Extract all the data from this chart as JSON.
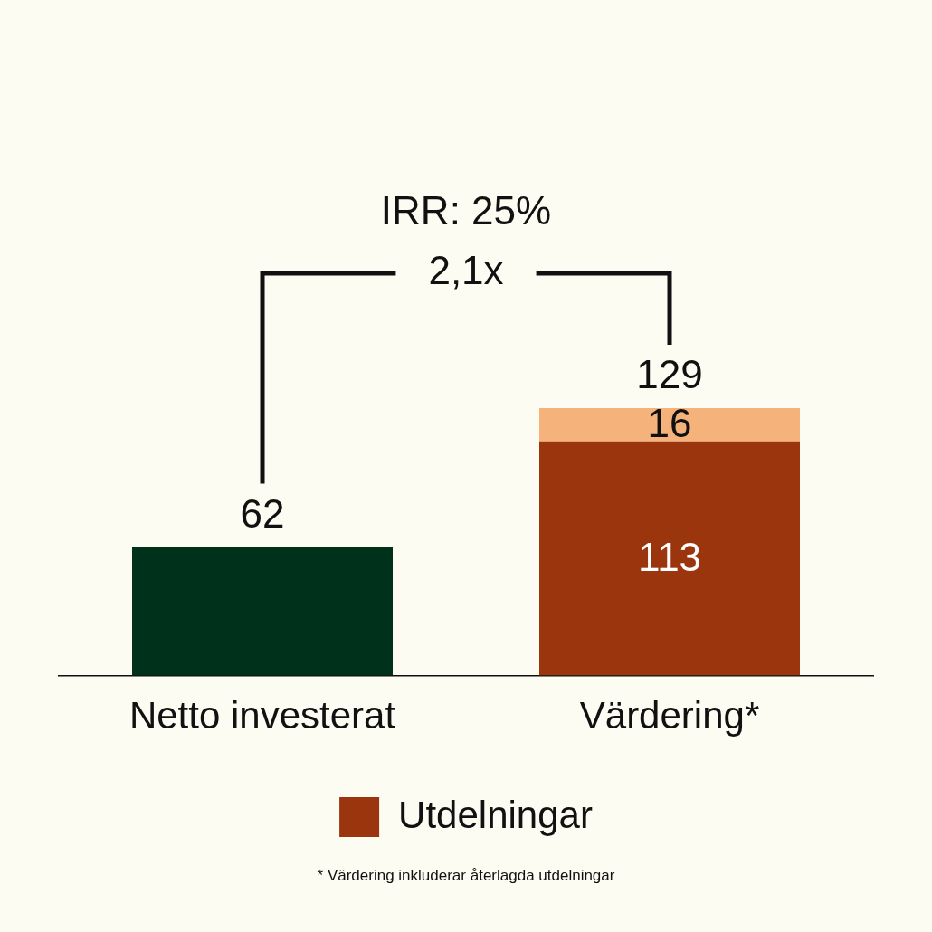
{
  "chart_data": {
    "type": "bar",
    "stacked": true,
    "categories": [
      "Netto investerat",
      "Värdering*"
    ],
    "series": [
      {
        "color": "#00311a",
        "values": [
          62,
          null
        ],
        "value_labels": [
          null,
          null
        ]
      },
      {
        "name": "Utdelningar",
        "color": "#9b350d",
        "values": [
          null,
          113
        ],
        "value_labels": [
          null,
          "113"
        ]
      },
      {
        "color": "#f5b27a",
        "values": [
          null,
          16
        ],
        "value_labels": [
          null,
          "16"
        ]
      }
    ],
    "totals": [
      "62",
      "129"
    ],
    "legend": "bottom",
    "grid": false,
    "annotations": [
      "IRR: 25%",
      "2,1x",
      "* Värdering inkluderar återlagda utdelningar"
    ]
  }
}
